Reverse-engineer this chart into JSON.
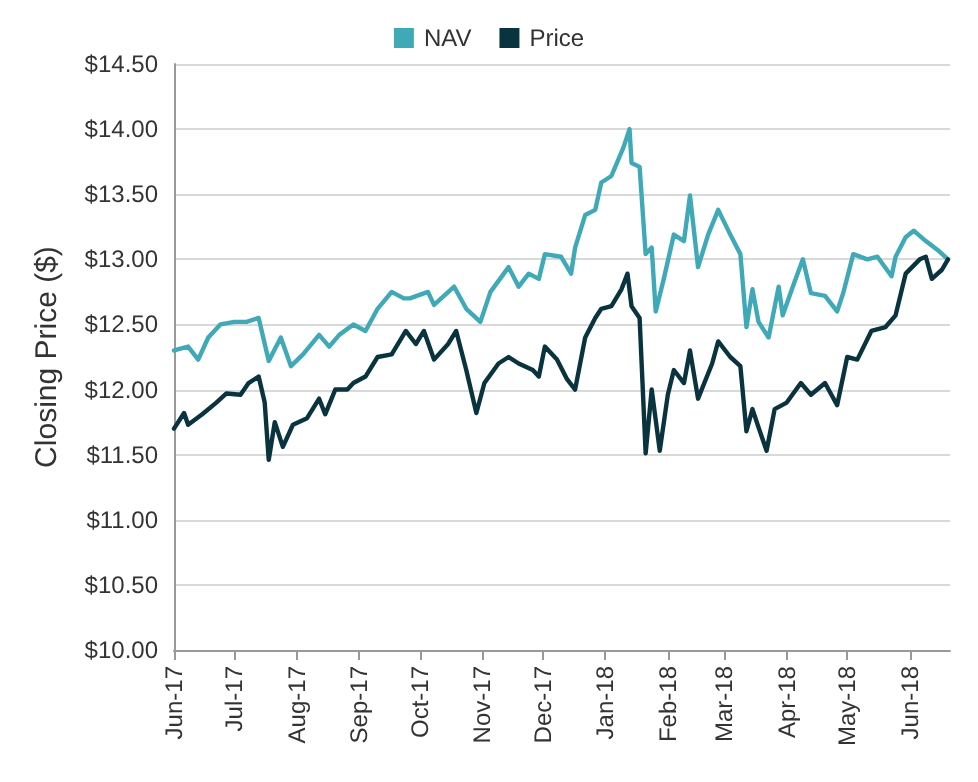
{
  "chart_data": {
    "type": "line",
    "ylabel": "Closing Price ($)",
    "legend": "top",
    "grid": "y",
    "marker": "none",
    "line_style": "solid",
    "xlim": [
      "2017-06-01",
      "2018-06-21"
    ],
    "xticks": [
      {
        "value": "2017-06-01",
        "label": "Jun-17"
      },
      {
        "value": "2017-07-01",
        "label": "Jul-17"
      },
      {
        "value": "2017-08-01",
        "label": "Aug-17"
      },
      {
        "value": "2017-09-01",
        "label": "Sep-17"
      },
      {
        "value": "2017-10-01",
        "label": "Oct-17"
      },
      {
        "value": "2017-11-01",
        "label": "Nov-17"
      },
      {
        "value": "2017-12-01",
        "label": "Dec-17"
      },
      {
        "value": "2018-01-01",
        "label": "Jan-18"
      },
      {
        "value": "2018-02-01",
        "label": "Feb-18"
      },
      {
        "value": "2018-03-01",
        "label": "Mar-18"
      },
      {
        "value": "2018-04-01",
        "label": "Apr-18"
      },
      {
        "value": "2018-05-01",
        "label": "May-18"
      },
      {
        "value": "2018-06-01",
        "label": "Jun-18"
      }
    ],
    "ylim": [
      10,
      14.5
    ],
    "yticks": [
      {
        "value": 10,
        "label": "$10.00"
      },
      {
        "value": 10.5,
        "label": "$10.50"
      },
      {
        "value": 11,
        "label": "$11.00"
      },
      {
        "value": 11.5,
        "label": "$11.50"
      },
      {
        "value": 12,
        "label": "$12.00"
      },
      {
        "value": 12.5,
        "label": "$12.50"
      },
      {
        "value": 13,
        "label": "$13.00"
      },
      {
        "value": 13.5,
        "label": "$13.50"
      },
      {
        "value": 14,
        "label": "$14.00"
      },
      {
        "value": 14.5,
        "label": "$14.50"
      }
    ],
    "series": [
      {
        "name": "NAV",
        "color": "#3fa9b8",
        "x": [
          "2017-06-01",
          "2017-06-08",
          "2017-06-13",
          "2017-06-18",
          "2017-06-24",
          "2017-07-01",
          "2017-07-07",
          "2017-07-13",
          "2017-07-18",
          "2017-07-24",
          "2017-07-29",
          "2017-08-04",
          "2017-08-12",
          "2017-08-17",
          "2017-08-22",
          "2017-08-29",
          "2017-09-04",
          "2017-09-10",
          "2017-09-17",
          "2017-09-23",
          "2017-09-26",
          "2017-10-05",
          "2017-10-08",
          "2017-10-18",
          "2017-10-24",
          "2017-10-31",
          "2017-11-05",
          "2017-11-14",
          "2017-11-19",
          "2017-11-24",
          "2017-11-29",
          "2017-12-02",
          "2017-12-10",
          "2017-12-15",
          "2017-12-17",
          "2017-12-22",
          "2017-12-27",
          "2017-12-30",
          "2018-01-04",
          "2018-01-10",
          "2018-01-13",
          "2018-01-14",
          "2018-01-18",
          "2018-01-21",
          "2018-01-24",
          "2018-01-26",
          "2018-01-30",
          "2018-02-04",
          "2018-02-09",
          "2018-02-12",
          "2018-02-16",
          "2018-02-21",
          "2018-02-26",
          "2018-03-04",
          "2018-03-09",
          "2018-03-12",
          "2018-03-15",
          "2018-03-18",
          "2018-03-23",
          "2018-03-28",
          "2018-03-30",
          "2018-04-04",
          "2018-04-09",
          "2018-04-13",
          "2018-04-20",
          "2018-04-26",
          "2018-04-29",
          "2018-05-04",
          "2018-05-11",
          "2018-05-16",
          "2018-05-23",
          "2018-05-25",
          "2018-05-30",
          "2018-06-03",
          "2018-06-09",
          "2018-06-15",
          "2018-06-20"
        ],
        "values": [
          12.3,
          12.33,
          12.23,
          12.4,
          12.5,
          12.52,
          12.52,
          12.55,
          12.22,
          12.4,
          12.18,
          12.27,
          12.42,
          12.33,
          12.42,
          12.5,
          12.45,
          12.62,
          12.75,
          12.7,
          12.7,
          12.75,
          12.65,
          12.79,
          12.62,
          12.52,
          12.75,
          12.94,
          12.79,
          12.89,
          12.85,
          13.04,
          13.02,
          12.89,
          13.09,
          13.34,
          13.38,
          13.59,
          13.64,
          13.86,
          14.0,
          13.74,
          13.71,
          13.04,
          13.09,
          12.6,
          12.85,
          13.19,
          13.14,
          13.49,
          12.94,
          13.19,
          13.38,
          13.19,
          13.04,
          12.48,
          12.77,
          12.52,
          12.4,
          12.79,
          12.57,
          12.79,
          13.0,
          12.74,
          12.72,
          12.6,
          12.74,
          13.04,
          13.0,
          13.02,
          12.87,
          13.02,
          13.17,
          13.22,
          13.14,
          13.07,
          13.0
        ]
      },
      {
        "name": "Price",
        "color": "#0a3340",
        "x": [
          "2017-06-01",
          "2017-06-06",
          "2017-06-08",
          "2017-06-15",
          "2017-06-22",
          "2017-06-27",
          "2017-07-04",
          "2017-07-08",
          "2017-07-13",
          "2017-07-16",
          "2017-07-18",
          "2017-07-21",
          "2017-07-25",
          "2017-07-30",
          "2017-08-06",
          "2017-08-12",
          "2017-08-15",
          "2017-08-20",
          "2017-08-26",
          "2017-08-29",
          "2017-09-04",
          "2017-09-10",
          "2017-09-17",
          "2017-09-24",
          "2017-09-29",
          "2017-10-03",
          "2017-10-08",
          "2017-10-15",
          "2017-10-19",
          "2017-10-24",
          "2017-10-29",
          "2017-11-02",
          "2017-11-09",
          "2017-11-14",
          "2017-11-19",
          "2017-11-26",
          "2017-11-29",
          "2017-12-02",
          "2017-12-08",
          "2017-12-13",
          "2017-12-17",
          "2017-12-22",
          "2017-12-27",
          "2017-12-30",
          "2018-01-04",
          "2018-01-09",
          "2018-01-12",
          "2018-01-14",
          "2018-01-18",
          "2018-01-21",
          "2018-01-24",
          "2018-01-28",
          "2018-02-01",
          "2018-02-04",
          "2018-02-09",
          "2018-02-12",
          "2018-02-16",
          "2018-02-23",
          "2018-02-26",
          "2018-03-04",
          "2018-03-09",
          "2018-03-12",
          "2018-03-15",
          "2018-03-18",
          "2018-03-22",
          "2018-03-26",
          "2018-04-01",
          "2018-04-08",
          "2018-04-13",
          "2018-04-20",
          "2018-04-26",
          "2018-05-01",
          "2018-05-06",
          "2018-05-13",
          "2018-05-20",
          "2018-05-25",
          "2018-05-30",
          "2018-06-06",
          "2018-06-09",
          "2018-06-12",
          "2018-06-17",
          "2018-06-20"
        ],
        "values": [
          11.7,
          11.82,
          11.73,
          11.81,
          11.9,
          11.97,
          11.96,
          12.05,
          12.1,
          11.9,
          11.46,
          11.75,
          11.56,
          11.73,
          11.78,
          11.93,
          11.81,
          12.0,
          12.0,
          12.05,
          12.1,
          12.25,
          12.27,
          12.45,
          12.35,
          12.45,
          12.23,
          12.35,
          12.45,
          12.15,
          11.82,
          12.05,
          12.2,
          12.25,
          12.2,
          12.15,
          12.1,
          12.33,
          12.23,
          12.08,
          12.0,
          12.4,
          12.55,
          12.62,
          12.64,
          12.77,
          12.89,
          12.64,
          12.55,
          11.51,
          12.0,
          11.53,
          11.96,
          12.15,
          12.05,
          12.3,
          11.93,
          12.2,
          12.37,
          12.25,
          12.18,
          11.68,
          11.85,
          11.71,
          11.53,
          11.85,
          11.9,
          12.05,
          11.96,
          12.05,
          11.88,
          12.25,
          12.23,
          12.45,
          12.48,
          12.57,
          12.89,
          13.0,
          13.02,
          12.85,
          12.92,
          13.0
        ]
      }
    ]
  }
}
